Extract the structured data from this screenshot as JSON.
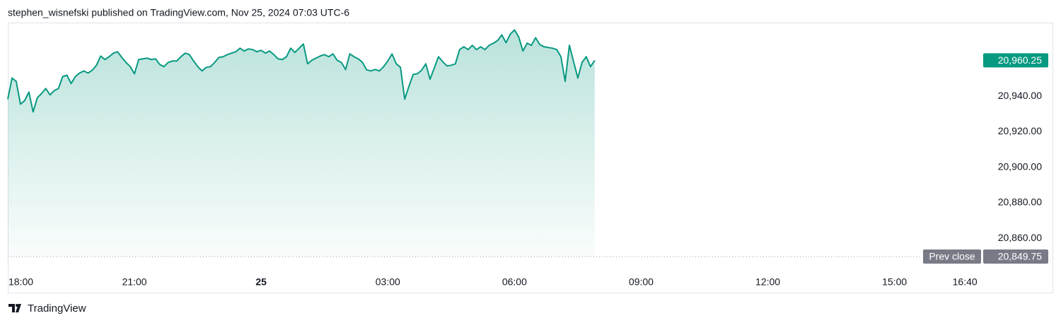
{
  "header": "stephen_wisnefski published on TradingView.com, Nov 25, 2024 07:03 UTC-6",
  "chart_data": {
    "type": "area",
    "x": [
      18,
      18.1,
      18.2,
      18.3,
      18.4,
      18.5,
      18.6,
      18.7,
      18.8,
      18.9,
      19,
      19.1,
      19.2,
      19.3,
      19.4,
      19.5,
      19.6,
      19.7,
      19.8,
      19.9,
      20,
      20.1,
      20.2,
      20.3,
      20.4,
      20.5,
      20.6,
      20.7,
      20.8,
      20.9,
      21,
      21.1,
      21.2,
      21.3,
      21.4,
      21.5,
      21.6,
      21.7,
      21.8,
      21.9,
      22,
      22.1,
      22.2,
      22.3,
      22.4,
      22.5,
      22.6,
      22.7,
      22.8,
      22.9,
      23,
      23.1,
      23.2,
      23.3,
      23.4,
      23.5,
      23.6,
      23.7,
      23.8,
      23.9,
      24,
      24.1,
      24.2,
      24.3,
      24.4,
      24.5,
      24.6,
      24.7,
      24.8,
      24.9,
      25,
      25.1,
      25.2,
      25.3,
      25.4,
      25.5,
      25.6,
      25.7,
      25.8,
      25.9,
      26,
      26.1,
      26.2,
      26.3,
      26.4,
      26.5,
      26.6,
      26.7,
      26.8,
      26.9,
      27,
      27.1,
      27.2,
      27.3,
      27.4,
      27.5,
      27.6,
      27.7,
      27.8,
      27.9,
      28,
      28.1,
      28.2,
      28.3,
      28.4,
      28.5,
      28.6,
      28.7,
      28.8,
      28.9,
      29,
      29.1,
      29.2,
      29.3,
      29.4,
      29.5,
      29.6,
      29.7,
      29.8,
      29.9,
      30,
      30.1,
      30.2,
      30.3,
      30.4,
      30.5,
      30.6,
      30.7,
      30.8,
      30.9,
      31,
      31.1,
      31.2,
      31.3,
      31.4,
      31.5,
      31.6,
      31.7,
      31.8,
      31.9
    ],
    "series": [
      {
        "color": "#089981",
        "values": [
          20938.4,
          20950.3,
          20948.4,
          20935.6,
          20937.6,
          20942.4,
          20931.2,
          20939.2,
          20941.6,
          20944.4,
          20940.8,
          20943.2,
          20944.4,
          20951.1,
          20951.9,
          20947.2,
          20951.1,
          20953.1,
          20954.3,
          20953.1,
          20954.7,
          20957.5,
          20962.7,
          20960.7,
          20962.3,
          20964.3,
          20965.1,
          20961.9,
          20959.1,
          20956.7,
          20952.7,
          20960.7,
          20961.1,
          20961.5,
          20960.7,
          20961.1,
          20957.9,
          20956.7,
          20959.1,
          20959.9,
          20959.9,
          20962.3,
          20964.3,
          20963.5,
          20959.9,
          20956.7,
          20954.3,
          20956.3,
          20956.7,
          20959.1,
          20961.9,
          20962.3,
          20963.5,
          20964.3,
          20965.1,
          20967.1,
          20965.5,
          20966.7,
          20966.3,
          20965.1,
          20965.9,
          20964.3,
          20965.5,
          20963.5,
          20961.1,
          20960.7,
          20962.3,
          20967.1,
          20964.7,
          20967.1,
          20969.5,
          20958.3,
          20960.3,
          20961.5,
          20962.7,
          20963.5,
          20962.3,
          20963.9,
          20960.3,
          20959.1,
          20955.1,
          20963.9,
          20962.3,
          20961.1,
          20959.1,
          20954.9,
          20954.3,
          20955.1,
          20954.3,
          20956.7,
          20959.9,
          20963.9,
          20958.3,
          20956.3,
          20938.4,
          20945.6,
          20952.3,
          20952.7,
          20954.7,
          20958.3,
          20949.6,
          20955.9,
          20962.3,
          20959.5,
          20957.1,
          20957.5,
          20958.3,
          20966.3,
          20967.9,
          20966.3,
          20968.7,
          20966.3,
          20967.9,
          20966.3,
          20968.7,
          20969.9,
          20971.4,
          20974.6,
          20970.2,
          20975.0,
          20977.4,
          20973.4,
          20965.5,
          20969.9,
          20968.7,
          20973.0,
          20969.1,
          20967.9,
          20967.5,
          20967.1,
          20966.3,
          20962.3,
          20948.4,
          20968.7,
          20959.5,
          20950.3,
          20959.1,
          20962.3,
          20956.7,
          20960.25
        ]
      }
    ],
    "xlim": [
      18,
      41.1
    ],
    "xticks": [
      {
        "value": 18,
        "label": "18:00"
      },
      {
        "value": 21,
        "label": "21:00"
      },
      {
        "value": 24,
        "label": "25"
      },
      {
        "value": 27,
        "label": "03:00"
      },
      {
        "value": 30,
        "label": "06:00"
      },
      {
        "value": 33,
        "label": "09:00"
      },
      {
        "value": 36,
        "label": "12:00"
      },
      {
        "value": 39,
        "label": "15:00"
      },
      {
        "value": 40.667,
        "label": "16:40"
      }
    ],
    "ylim": [
      20843,
      20981.5
    ],
    "yticks": [
      {
        "value": 20860,
        "label": "20,860.00"
      },
      {
        "value": 20880,
        "label": "20,880.00"
      },
      {
        "value": 20900,
        "label": "20,900.00"
      },
      {
        "value": 20920,
        "label": "20,920.00"
      },
      {
        "value": 20940,
        "label": "20,940.00"
      }
    ],
    "last_price": {
      "value": 20960.25,
      "label": "20,960.25"
    },
    "prev_close": {
      "name": "Prev close",
      "value": 20849.75,
      "label": "20,849.75"
    }
  },
  "footer": "TradingView"
}
